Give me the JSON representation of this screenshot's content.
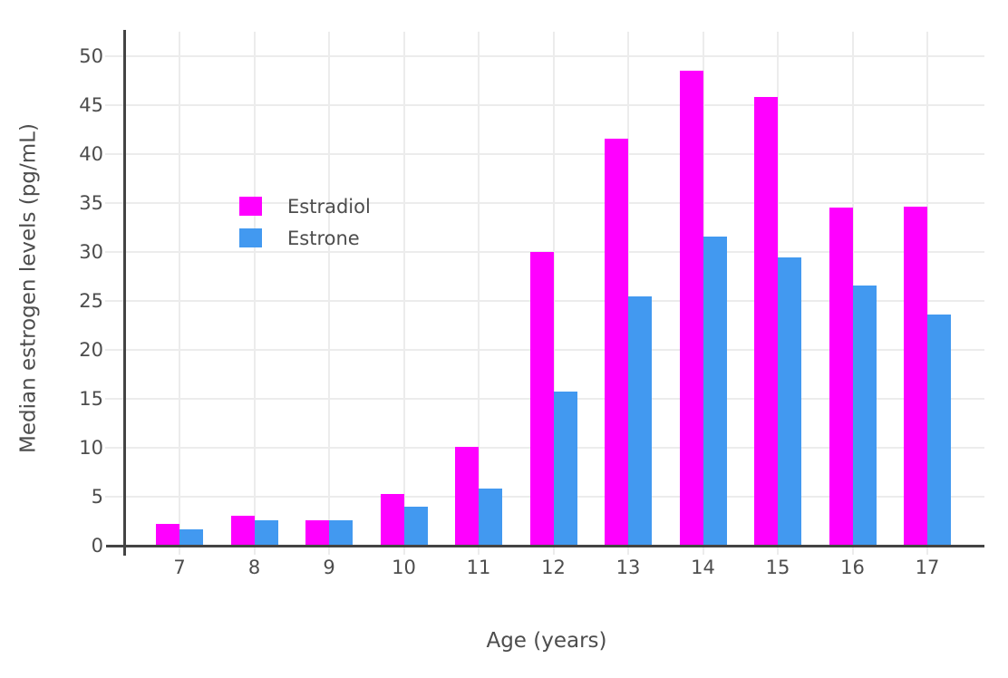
{
  "chart_data": {
    "type": "bar",
    "title": "",
    "xlabel": "Age (years)",
    "ylabel": "Median estrogen levels (pg/mL)",
    "categories": [
      "7",
      "8",
      "9",
      "10",
      "11",
      "12",
      "13",
      "14",
      "15",
      "16",
      "17"
    ],
    "series": [
      {
        "name": "Estradiol",
        "color": "#ff00ff",
        "values": [
          2.2,
          3.1,
          2.6,
          5.3,
          10.1,
          30.0,
          41.6,
          48.5,
          45.8,
          34.5,
          34.6
        ]
      },
      {
        "name": "Estrone",
        "color": "#4299f0",
        "values": [
          1.7,
          2.6,
          2.6,
          4.0,
          5.8,
          15.7,
          25.5,
          31.6,
          29.4,
          26.6,
          23.6
        ]
      }
    ],
    "ylim": [
      0,
      52.5
    ],
    "yticks": [
      0,
      5,
      10,
      15,
      20,
      25,
      30,
      35,
      40,
      45,
      50
    ],
    "grid": true,
    "legend_position": "inside-upper-left"
  },
  "colors": {
    "background": "#ffffff",
    "text": "#4d4d4d",
    "axis_line": "#444444",
    "gridline": "#ececec"
  }
}
